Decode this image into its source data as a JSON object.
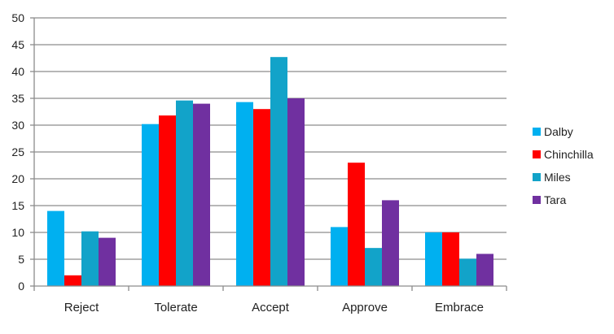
{
  "chart_data": {
    "type": "bar",
    "title": "",
    "xlabel": "",
    "ylabel": "",
    "ylim": [
      0,
      50
    ],
    "yticks": [
      0,
      5,
      10,
      15,
      20,
      25,
      30,
      35,
      40,
      45,
      50
    ],
    "grid": true,
    "legend": "right",
    "categories": [
      "Reject",
      "Tolerate",
      "Accept",
      "Approve",
      "Embrace"
    ],
    "series": [
      {
        "name": "Dalby",
        "color": "#00B0F0",
        "values": [
          14,
          30.2,
          34.3,
          11,
          10
        ]
      },
      {
        "name": "Chinchilla",
        "color": "#FF0000",
        "values": [
          2,
          31.8,
          33,
          23,
          10
        ]
      },
      {
        "name": "Miles",
        "color": "#12A3C9",
        "values": [
          10.2,
          34.6,
          42.7,
          7.1,
          5.1
        ]
      },
      {
        "name": "Tara",
        "color": "#7030A0",
        "values": [
          9,
          34,
          35,
          16,
          6
        ]
      }
    ]
  }
}
